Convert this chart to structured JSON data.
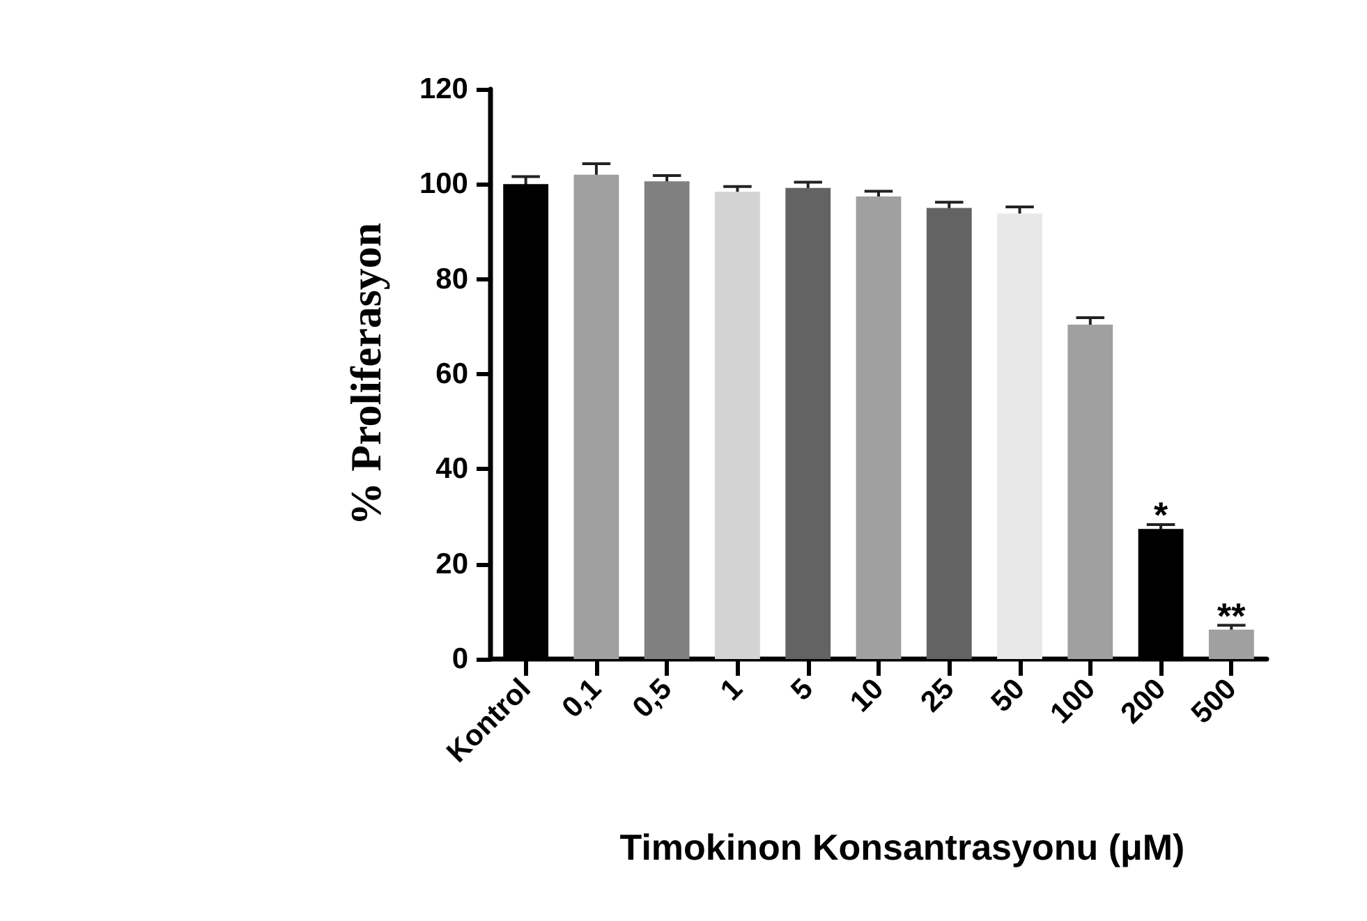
{
  "chart_data": {
    "type": "bar",
    "xlabel": "Timokinon Konsantrasyonu (μM)",
    "ylabel": "% Proliferasyon",
    "categories": [
      "Kontrol",
      "0,1",
      "0,5",
      "1",
      "5",
      "10",
      "25",
      "50",
      "100",
      "200",
      "500"
    ],
    "values": [
      100,
      102,
      100.6,
      98.4,
      99.2,
      97.4,
      95,
      93.8,
      70.4,
      27.4,
      6.2
    ],
    "errors": [
      1.6,
      2.3,
      1.2,
      1.1,
      1.2,
      1.1,
      1.2,
      1.4,
      1.5,
      0.9,
      0.9
    ],
    "colors": [
      "#000000",
      "#a0a0a0",
      "#808080",
      "#d3d3d3",
      "#636363",
      "#a0a0a0",
      "#636363",
      "#e8e8e8",
      "#a0a0a0",
      "#000000",
      "#a0a0a0"
    ],
    "ylim": [
      0,
      120
    ],
    "yticks": [
      0,
      20,
      40,
      60,
      80,
      100,
      120
    ],
    "annotations": [
      {
        "text": "*",
        "x": "200",
        "y": 28.3
      },
      {
        "text": "**",
        "x": "500",
        "y": 7.1
      }
    ]
  }
}
